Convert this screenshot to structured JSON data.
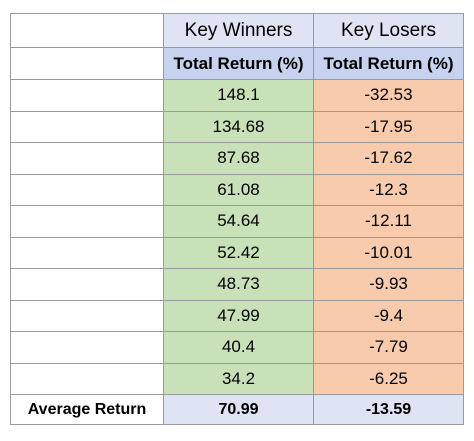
{
  "chart_data": {
    "type": "table",
    "columns": [
      "Key Winners",
      "Key Losers"
    ],
    "subheaders": [
      "Total Return (%)",
      "Total Return (%)"
    ],
    "rows": [
      [
        "148.1",
        "-32.53"
      ],
      [
        "134.68",
        "-17.95"
      ],
      [
        "87.68",
        "-17.62"
      ],
      [
        "61.08",
        "-12.3"
      ],
      [
        "54.64",
        "-12.11"
      ],
      [
        "52.42",
        "-10.01"
      ],
      [
        "48.73",
        "-9.93"
      ],
      [
        "47.99",
        "-9.4"
      ],
      [
        "40.4",
        "-7.79"
      ],
      [
        "34.2",
        "-6.25"
      ]
    ],
    "average": {
      "label": "Average Return",
      "winners": "70.99",
      "losers": "-13.59"
    }
  },
  "colors": {
    "header_bg": "#dfe4f4",
    "subheader_bg": "#c6d2ee",
    "winners_bg": "#c8e1b9",
    "losers_bg": "#f8cbad",
    "border": "#9a9a9a"
  }
}
